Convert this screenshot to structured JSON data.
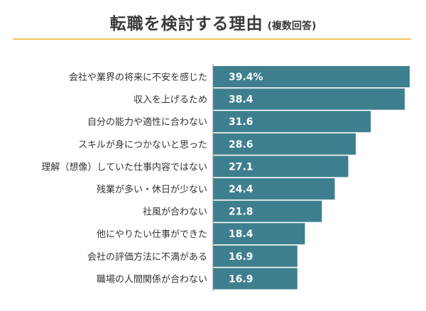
{
  "chart_data": {
    "type": "bar",
    "orientation": "horizontal",
    "title": "転職を検討する理由",
    "subtitle": "(複数回答)",
    "categories": [
      "会社や業界の将来に不安を感じた",
      "収入を上げるため",
      "自分の能力や適性に合わない",
      "スキルが身につかないと思った",
      "理解（想像）していた仕事内容ではない",
      "残業が多い・休日が少ない",
      "社風が合わない",
      "他にやりたい仕事ができた",
      "会社の評価方法に不満がある",
      "職場の人間関係が合わない"
    ],
    "values": [
      39.4,
      38.4,
      31.6,
      28.6,
      27.1,
      24.4,
      21.8,
      18.4,
      16.9,
      16.9
    ],
    "value_labels": [
      "39.4%",
      "38.4",
      "31.6",
      "28.6",
      "27.1",
      "24.4",
      "21.8",
      "18.4",
      "16.9",
      "16.9"
    ],
    "xlim": [
      0,
      39.4
    ],
    "grid": false,
    "legend": "none",
    "colors": {
      "bar": "#3e7f8f",
      "axis": "#8c8c8c",
      "title_rule": "#f0c75a",
      "text": "#333333"
    }
  }
}
